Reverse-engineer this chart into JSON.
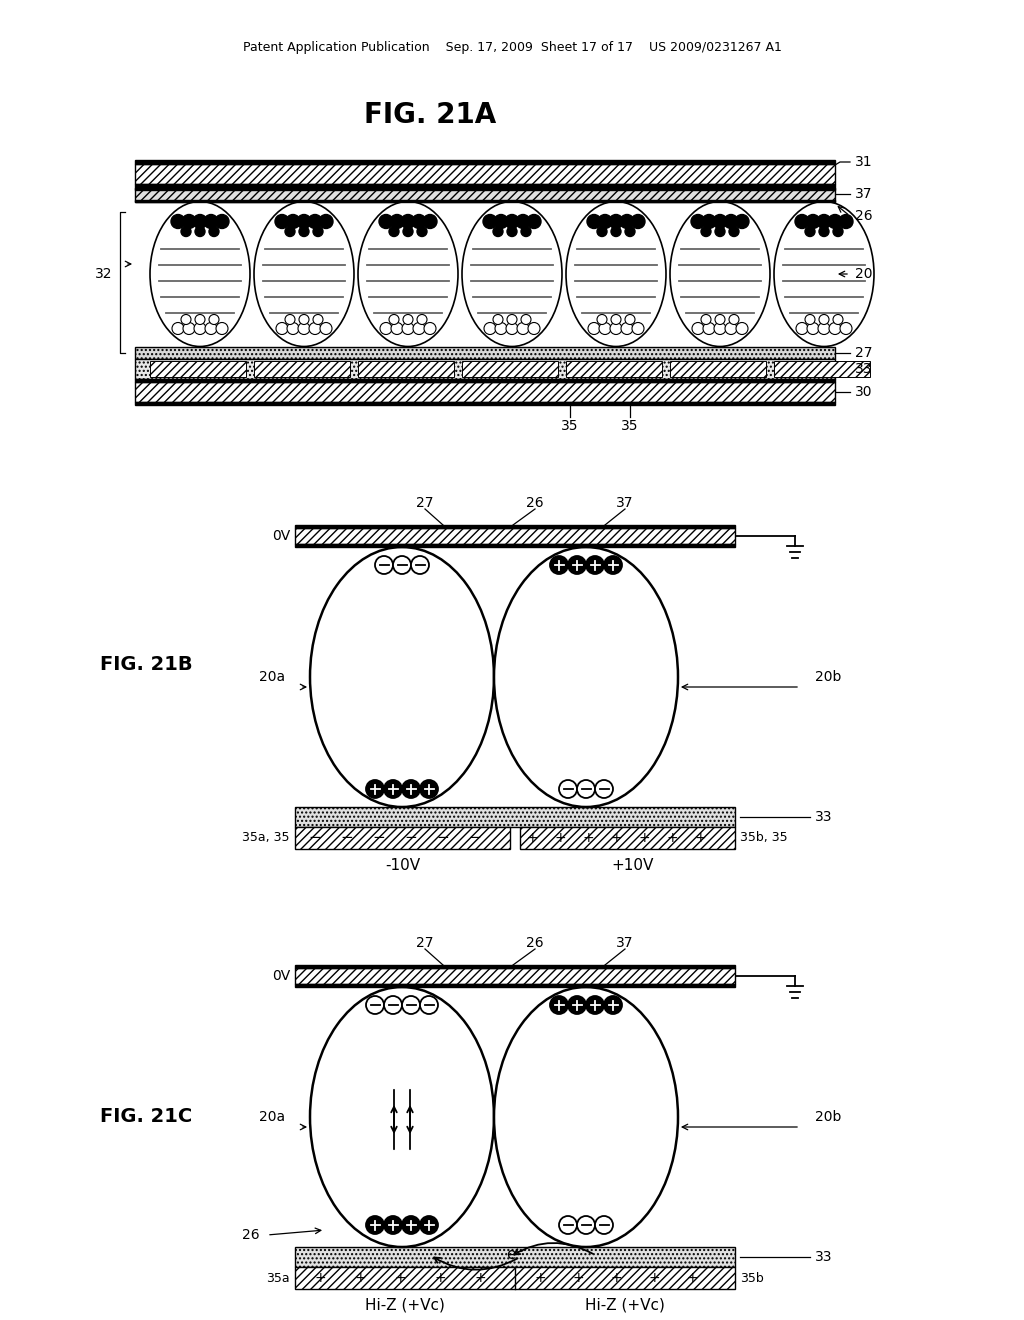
{
  "header": "Patent Application Publication    Sep. 17, 2009  Sheet 17 of 17    US 2009/0231267 A1",
  "background": "#ffffff",
  "title_A": "FIG. 21A",
  "fig_label_B": "FIG. 21B",
  "fig_label_C": "FIG. 21C"
}
